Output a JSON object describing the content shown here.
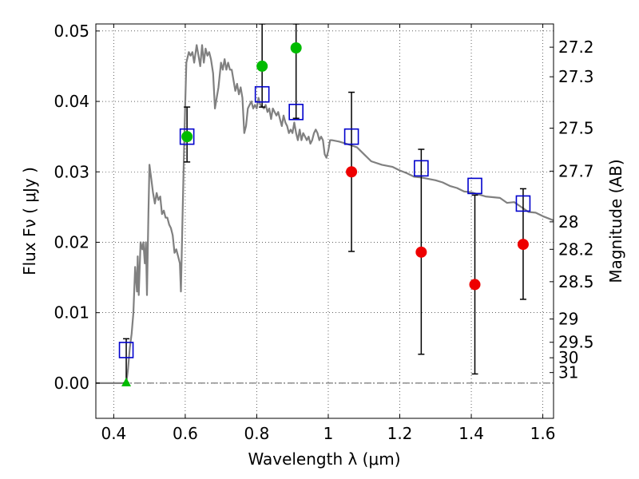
{
  "chart_data": {
    "type": "scatter",
    "title": "",
    "xlabel": "Wavelength  λ (μm)",
    "ylabel": "Flux  Fν  ( μJy )",
    "ylabel_right": "Magnitude (AB)",
    "xlim": [
      0.35,
      1.63
    ],
    "ylim": [
      -0.005,
      0.051
    ],
    "grid": true,
    "x_ticks": [
      0.4,
      0.6,
      0.8,
      1.0,
      1.2,
      1.4,
      1.6
    ],
    "x_tick_labels": [
      "0.4",
      "0.6",
      "0.8",
      "1",
      "1.2",
      "1.4",
      "1.6"
    ],
    "y_ticks": [
      0.0,
      0.01,
      0.02,
      0.03,
      0.04,
      0.05
    ],
    "y_tick_labels": [
      "0.00",
      "0.01",
      "0.02",
      "0.03",
      "0.04",
      "0.05"
    ],
    "right_ticks": [
      {
        "label": "27.2",
        "flux": 0.0477
      },
      {
        "label": "27.3",
        "flux": 0.0435
      },
      {
        "label": "27.5",
        "flux": 0.0362
      },
      {
        "label": "27.7",
        "flux": 0.0301
      },
      {
        "label": "28",
        "flux": 0.0229
      },
      {
        "label": "28.2",
        "flux": 0.019
      },
      {
        "label": "28.5",
        "flux": 0.0144
      },
      {
        "label": "29",
        "flux": 0.0091
      },
      {
        "label": "29.5",
        "flux": 0.0058
      },
      {
        "label": "30",
        "flux": 0.0036
      },
      {
        "label": "31",
        "flux": 0.0015
      }
    ],
    "series": [
      {
        "name": "model spectrum",
        "kind": "line",
        "color": "#808080",
        "points": [
          [
            0.35,
            0.0
          ],
          [
            0.425,
            0.0
          ],
          [
            0.435,
            0.0
          ],
          [
            0.44,
            0.002
          ],
          [
            0.445,
            0.005
          ],
          [
            0.45,
            0.007
          ],
          [
            0.455,
            0.01
          ],
          [
            0.46,
            0.0165
          ],
          [
            0.465,
            0.013
          ],
          [
            0.467,
            0.018
          ],
          [
            0.47,
            0.0125
          ],
          [
            0.475,
            0.02
          ],
          [
            0.48,
            0.019
          ],
          [
            0.483,
            0.02
          ],
          [
            0.487,
            0.017
          ],
          [
            0.49,
            0.02
          ],
          [
            0.493,
            0.0125
          ],
          [
            0.497,
            0.024
          ],
          [
            0.5,
            0.031
          ],
          [
            0.505,
            0.029
          ],
          [
            0.51,
            0.027
          ],
          [
            0.515,
            0.0255
          ],
          [
            0.52,
            0.027
          ],
          [
            0.525,
            0.026
          ],
          [
            0.53,
            0.0265
          ],
          [
            0.535,
            0.024
          ],
          [
            0.54,
            0.0245
          ],
          [
            0.545,
            0.0235
          ],
          [
            0.55,
            0.0235
          ],
          [
            0.555,
            0.0225
          ],
          [
            0.56,
            0.022
          ],
          [
            0.565,
            0.021
          ],
          [
            0.57,
            0.0185
          ],
          [
            0.575,
            0.019
          ],
          [
            0.58,
            0.018
          ],
          [
            0.585,
            0.017
          ],
          [
            0.588,
            0.013
          ],
          [
            0.593,
            0.025
          ],
          [
            0.598,
            0.036
          ],
          [
            0.603,
            0.0455
          ],
          [
            0.61,
            0.047
          ],
          [
            0.615,
            0.0465
          ],
          [
            0.62,
            0.047
          ],
          [
            0.625,
            0.0455
          ],
          [
            0.632,
            0.048
          ],
          [
            0.637,
            0.0465
          ],
          [
            0.642,
            0.045
          ],
          [
            0.647,
            0.048
          ],
          [
            0.652,
            0.0455
          ],
          [
            0.657,
            0.0475
          ],
          [
            0.662,
            0.0465
          ],
          [
            0.667,
            0.047
          ],
          [
            0.672,
            0.046
          ],
          [
            0.678,
            0.044
          ],
          [
            0.683,
            0.039
          ],
          [
            0.688,
            0.0405
          ],
          [
            0.693,
            0.042
          ],
          [
            0.7,
            0.0455
          ],
          [
            0.705,
            0.0445
          ],
          [
            0.71,
            0.046
          ],
          [
            0.715,
            0.0445
          ],
          [
            0.72,
            0.0455
          ],
          [
            0.725,
            0.0445
          ],
          [
            0.73,
            0.0445
          ],
          [
            0.74,
            0.0415
          ],
          [
            0.745,
            0.0425
          ],
          [
            0.75,
            0.041
          ],
          [
            0.755,
            0.042
          ],
          [
            0.76,
            0.0405
          ],
          [
            0.765,
            0.0355
          ],
          [
            0.77,
            0.0365
          ],
          [
            0.775,
            0.039
          ],
          [
            0.78,
            0.0395
          ],
          [
            0.785,
            0.04
          ],
          [
            0.79,
            0.039
          ],
          [
            0.795,
            0.0395
          ],
          [
            0.8,
            0.039
          ],
          [
            0.805,
            0.0405
          ],
          [
            0.81,
            0.0395
          ],
          [
            0.82,
            0.039
          ],
          [
            0.825,
            0.0395
          ],
          [
            0.83,
            0.0385
          ],
          [
            0.835,
            0.039
          ],
          [
            0.84,
            0.0375
          ],
          [
            0.845,
            0.039
          ],
          [
            0.85,
            0.0385
          ],
          [
            0.855,
            0.038
          ],
          [
            0.86,
            0.0385
          ],
          [
            0.865,
            0.0375
          ],
          [
            0.87,
            0.0365
          ],
          [
            0.875,
            0.038
          ],
          [
            0.88,
            0.037
          ],
          [
            0.885,
            0.0365
          ],
          [
            0.89,
            0.0355
          ],
          [
            0.895,
            0.036
          ],
          [
            0.9,
            0.0355
          ],
          [
            0.905,
            0.037
          ],
          [
            0.91,
            0.0355
          ],
          [
            0.915,
            0.0345
          ],
          [
            0.92,
            0.036
          ],
          [
            0.925,
            0.0345
          ],
          [
            0.93,
            0.0355
          ],
          [
            0.935,
            0.035
          ],
          [
            0.94,
            0.0345
          ],
          [
            0.945,
            0.035
          ],
          [
            0.95,
            0.034
          ],
          [
            0.955,
            0.0345
          ],
          [
            0.96,
            0.0355
          ],
          [
            0.965,
            0.036
          ],
          [
            0.97,
            0.0355
          ],
          [
            0.975,
            0.0345
          ],
          [
            0.98,
            0.035
          ],
          [
            0.985,
            0.0345
          ],
          [
            0.99,
            0.0325
          ],
          [
            0.995,
            0.032
          ],
          [
            1.0,
            0.033
          ],
          [
            1.005,
            0.0345
          ],
          [
            1.01,
            0.0345
          ],
          [
            1.03,
            0.0343
          ],
          [
            1.05,
            0.034
          ],
          [
            1.08,
            0.0335
          ],
          [
            1.1,
            0.0325
          ],
          [
            1.12,
            0.0315
          ],
          [
            1.15,
            0.031
          ],
          [
            1.18,
            0.0307
          ],
          [
            1.2,
            0.0302
          ],
          [
            1.22,
            0.0298
          ],
          [
            1.24,
            0.0293
          ],
          [
            1.26,
            0.0292
          ],
          [
            1.28,
            0.029
          ],
          [
            1.3,
            0.0288
          ],
          [
            1.32,
            0.0285
          ],
          [
            1.34,
            0.028
          ],
          [
            1.36,
            0.0277
          ],
          [
            1.38,
            0.0272
          ],
          [
            1.4,
            0.0271
          ],
          [
            1.42,
            0.0268
          ],
          [
            1.44,
            0.0265
          ],
          [
            1.46,
            0.0264
          ],
          [
            1.48,
            0.0263
          ],
          [
            1.5,
            0.0256
          ],
          [
            1.52,
            0.0257
          ],
          [
            1.54,
            0.025
          ],
          [
            1.56,
            0.0243
          ],
          [
            1.58,
            0.0242
          ],
          [
            1.6,
            0.0237
          ],
          [
            1.63,
            0.0231
          ]
        ]
      },
      {
        "name": "model photometry",
        "kind": "open-square",
        "color": "#0000cc",
        "points": [
          [
            0.435,
            0.0047
          ],
          [
            0.605,
            0.035
          ],
          [
            0.815,
            0.041
          ],
          [
            0.91,
            0.0385
          ],
          [
            1.065,
            0.035
          ],
          [
            1.26,
            0.0305
          ],
          [
            1.41,
            0.028
          ],
          [
            1.545,
            0.0255
          ]
        ]
      },
      {
        "name": "green detections",
        "kind": "filled-circle",
        "color": "#00bb00",
        "points": [
          [
            0.605,
            0.035
          ],
          [
            0.815,
            0.045
          ],
          [
            0.91,
            0.0476
          ]
        ]
      },
      {
        "name": "red detections",
        "kind": "filled-circle",
        "color": "#ee0000",
        "points": [
          [
            1.065,
            0.03
          ],
          [
            1.26,
            0.0186
          ],
          [
            1.41,
            0.014
          ],
          [
            1.545,
            0.0197
          ]
        ]
      },
      {
        "name": "upper limit",
        "kind": "triangle",
        "color": "#00bb00",
        "points": [
          [
            0.435,
            0.0
          ]
        ]
      }
    ],
    "error_bars": [
      {
        "x": 0.435,
        "low": 0.0,
        "high": 0.0063
      },
      {
        "x": 0.605,
        "low": 0.0314,
        "high": 0.0392
      },
      {
        "x": 0.815,
        "low": 0.0392,
        "high": 0.051
      },
      {
        "x": 0.91,
        "low": 0.0376,
        "high": 0.051
      },
      {
        "x": 1.065,
        "low": 0.0187,
        "high": 0.0413
      },
      {
        "x": 1.26,
        "low": 0.0041,
        "high": 0.0332
      },
      {
        "x": 1.41,
        "low": 0.0013,
        "high": 0.0267
      },
      {
        "x": 1.545,
        "low": 0.0119,
        "high": 0.0276
      }
    ],
    "reference_line": {
      "y": 0.0,
      "style": "dash-dot",
      "color": "#555555"
    }
  }
}
